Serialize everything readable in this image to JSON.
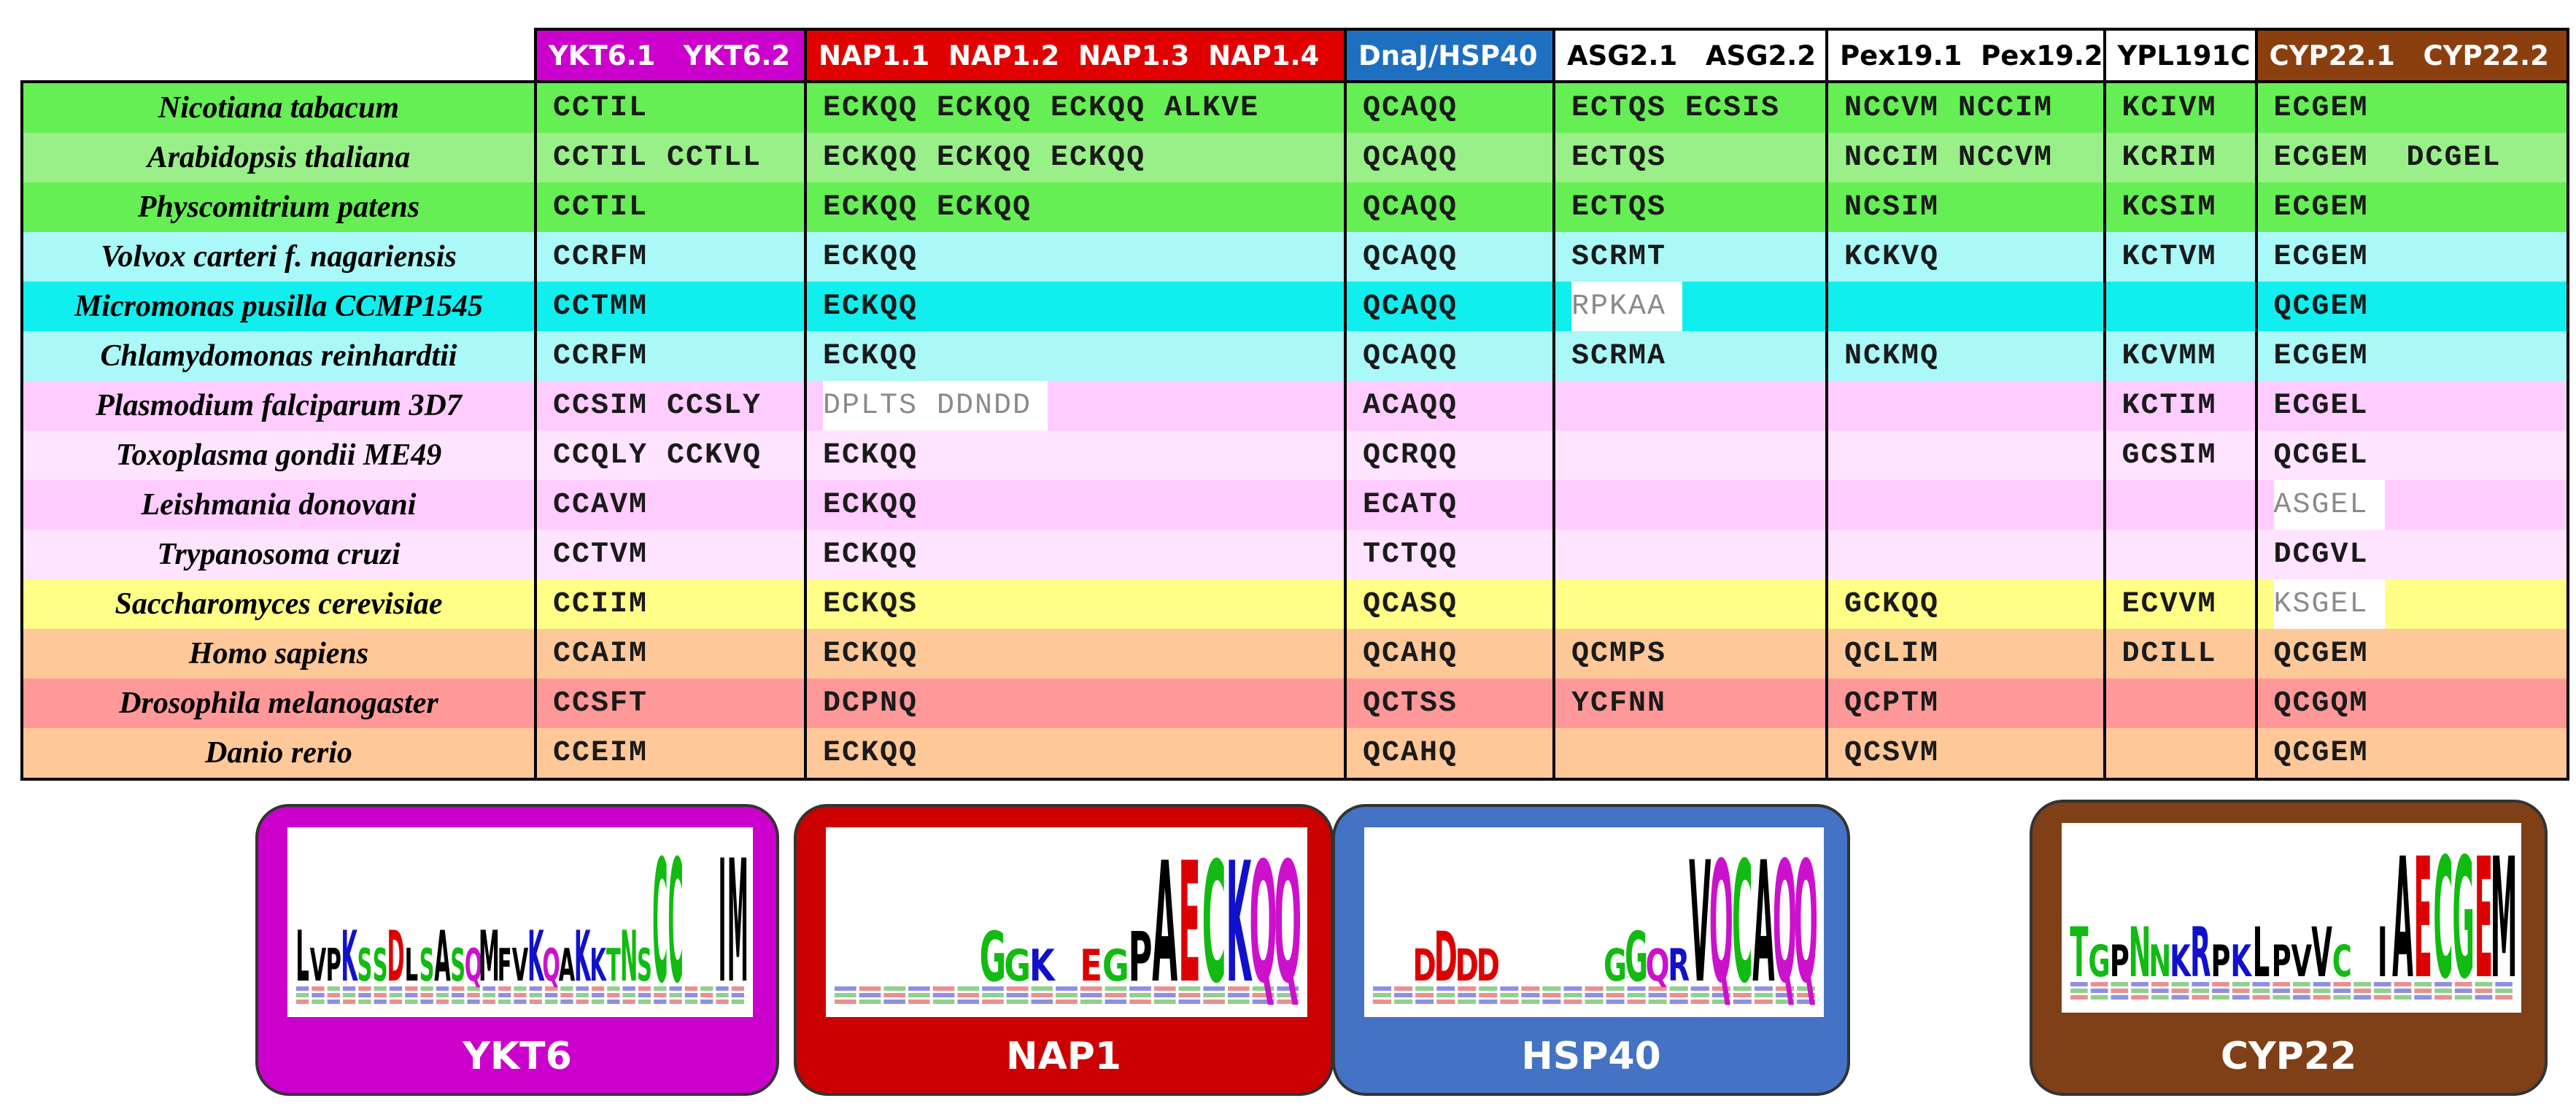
{
  "headers": [
    {
      "label": "YKT6.1   YKT6.2",
      "bg": "#cc00cc",
      "fg": "#ffffff"
    },
    {
      "label": "NAP1.1  NAP1.2  NAP1.3  NAP1.4",
      "bg": "#e00000",
      "fg": "#ffffff"
    },
    {
      "label": "DnaJ/HSP40",
      "bg": "#1f6fc1",
      "fg": "#ffffff"
    },
    {
      "label": "ASG2.1   ASG2.2",
      "bg": "#ffffff",
      "fg": "#000000"
    },
    {
      "label": "Pex19.1  Pex19.2",
      "bg": "#ffffff",
      "fg": "#000000"
    },
    {
      "label": "YPL191C",
      "bg": "#ffffff",
      "fg": "#000000"
    },
    {
      "label": "CYP22.1   CYP22.2",
      "bg": "#8b3f0f",
      "fg": "#ffffff"
    }
  ],
  "rows": [
    {
      "species": "Nicotiana tabacum",
      "color": "#66ee55",
      "ykt6": "CCTIL",
      "nap1": "ECKQQ ECKQQ ECKQQ ALKVE",
      "hsp40": "QCAQQ",
      "asg2": "ECTQS ECSIS",
      "pex19": "NCCVM NCCIM",
      "ypl": "KCIVM",
      "cyp22": "ECGEM"
    },
    {
      "species": "Arabidopsis thaliana",
      "color": "#99f088",
      "ykt6": "CCTIL CCTLL",
      "nap1": "ECKQQ ECKQQ ECKQQ",
      "hsp40": "QCAQQ",
      "asg2": "ECTQS",
      "pex19": "NCCIM NCCVM",
      "ypl": "KCRIM",
      "cyp22": "ECGEM  DCGEL"
    },
    {
      "species": "Physcomitrium  patens",
      "color": "#66ee55",
      "ykt6": "CCTIL",
      "nap1": "ECKQQ ECKQQ",
      "hsp40": "QCAQQ",
      "asg2": "ECTQS",
      "pex19": "NCSIM",
      "ypl": "KCSIM",
      "cyp22": "ECGEM"
    },
    {
      "species": "Volvox carteri f. nagariensis",
      "color": "#aaf8f8",
      "ykt6": "CCRFM",
      "nap1": "ECKQQ",
      "hsp40": "QCAQQ",
      "asg2": "SCRMT",
      "pex19": "KCKVQ",
      "ypl": "KCTVM",
      "cyp22": "ECGEM"
    },
    {
      "species": "Micromonas pusilla CCMP1545",
      "color": "#11eeee",
      "ykt6": "CCTMM",
      "nap1": "ECKQQ",
      "hsp40": "QCAQQ",
      "asg2": "RPKAA",
      "pex19": "",
      "ypl": "",
      "cyp22": "QCGEM"
    },
    {
      "species": "Chlamydomonas reinhardtii",
      "color": "#aaf8f8",
      "ykt6": "CCRFM",
      "nap1": "ECKQQ",
      "hsp40": "QCAQQ",
      "asg2": "SCRMA",
      "pex19": "NCKMQ",
      "ypl": "KCVMM",
      "cyp22": "ECGEM"
    },
    {
      "species": "Plasmodium falciparum 3D7",
      "color": "#ffccff",
      "ykt6": "CCSIM CCSLY",
      "nap1": "DPLTS DDNDD",
      "hsp40": "ACAQQ",
      "asg2": "",
      "pex19": "",
      "ypl": "KCTIM",
      "cyp22": "ECGEL"
    },
    {
      "species": "Toxoplasma gondii ME49",
      "color": "#ffe4ff",
      "ykt6": "CCQLY CCKVQ",
      "nap1": "ECKQQ",
      "hsp40": "QCRQQ",
      "asg2": "",
      "pex19": "",
      "ypl": "GCSIM",
      "cyp22": "QCGEL"
    },
    {
      "species": "Leishmania donovani",
      "color": "#ffccff",
      "ykt6": "CCAVM",
      "nap1": "ECKQQ",
      "hsp40": "ECATQ",
      "asg2": "",
      "pex19": "",
      "ypl": "",
      "cyp22": "ASGEL"
    },
    {
      "species": "Trypanosoma cruzi",
      "color": "#ffe4ff",
      "ykt6": "CCTVM",
      "nap1": "ECKQQ",
      "hsp40": "TCTQQ",
      "asg2": "",
      "pex19": "",
      "ypl": "",
      "cyp22": "DCGVL"
    },
    {
      "species": "Saccharomyces cerevisiae",
      "color": "#ffff88",
      "ykt6": "CCIIM",
      "nap1": "ECKQS",
      "hsp40": "QCASQ",
      "asg2": "",
      "pex19": "GCKQQ",
      "ypl": "ECVVM",
      "cyp22": "KSGEL"
    },
    {
      "species": "Homo sapiens",
      "color": "#ffc899",
      "ykt6": "CCAIM",
      "nap1": "ECKQQ",
      "hsp40": "QCAHQ",
      "asg2": "QCMPS",
      "pex19": "QCLIM",
      "ypl": "DCILL",
      "cyp22": "QCGEM"
    },
    {
      "species": "Drosophila melanogaster",
      "color": "#ff9999",
      "ykt6": "CCSFT",
      "nap1": "DCPNQ",
      "hsp40": "QCTSS",
      "asg2": "YCFNN",
      "pex19": "QCPTM",
      "ypl": "",
      "cyp22": "QCGQM"
    },
    {
      "species": "Danio rerio",
      "color": "#ffc899",
      "ykt6": "CCEIM",
      "nap1": "ECKQQ",
      "hsp40": "QCAHQ",
      "asg2": "",
      "pex19": "QCSVM",
      "ypl": "",
      "cyp22": "QCGEM"
    }
  ],
  "logos": [
    {
      "label": "YKT6",
      "color": "#cc00cc",
      "letters": "LVPKSSDLSASQMFVKQAKKTNSCC..IM"
    },
    {
      "label": "NAP1",
      "color": "#cc0000",
      "letters": "......GGK.EGPAECKQQ"
    },
    {
      "label": "HSP40",
      "color": "#4472c4",
      "letters": "..DDDD.....GGQRVQCAQQ"
    },
    {
      "label": "CYP22",
      "color": "#7f3f17",
      "letters": "TGPNNKRPKLPVVC.IAECGEM"
    }
  ],
  "gray_cells": [
    "4.asg2",
    "6.nap1",
    "8.cyp22",
    "10.cyp22"
  ]
}
